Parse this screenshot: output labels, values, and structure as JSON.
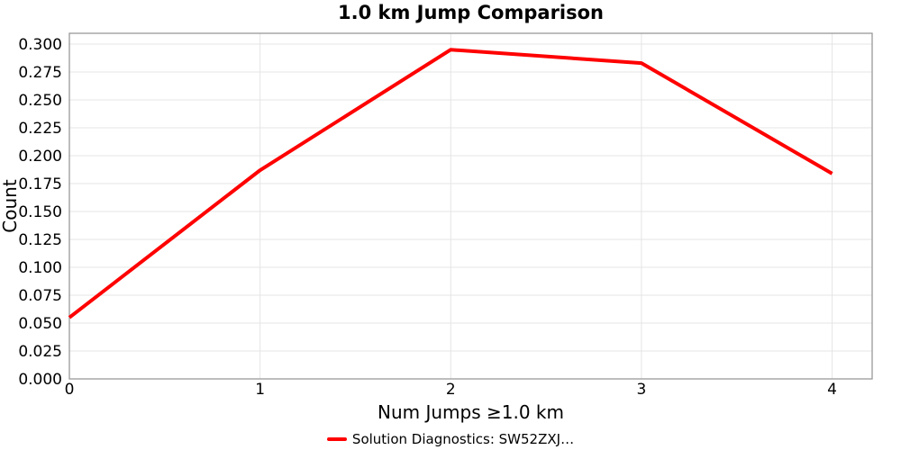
{
  "chart_data": {
    "type": "line",
    "title": "1.0 km Jump Comparison",
    "xlabel": "Num Jumps ≥1.0 km",
    "ylabel": "Count",
    "x": [
      0,
      1,
      2,
      3,
      4
    ],
    "series": [
      {
        "name": "Solution Diagnostics: SW52ZXJ…",
        "color": "#ff0000",
        "values": [
          0.055,
          0.187,
          0.295,
          0.283,
          0.184
        ]
      }
    ],
    "x_tick_labels": [
      "0",
      "1",
      "2",
      "3",
      "4"
    ],
    "x_tick_values": [
      0,
      1,
      2,
      3,
      4
    ],
    "y_tick_labels": [
      "0.000",
      "0.025",
      "0.050",
      "0.075",
      "0.100",
      "0.125",
      "0.150",
      "0.175",
      "0.200",
      "0.225",
      "0.250",
      "0.275",
      "0.300"
    ],
    "y_tick_values": [
      0,
      0.025,
      0.05,
      0.075,
      0.1,
      0.125,
      0.15,
      0.175,
      0.2,
      0.225,
      0.25,
      0.275,
      0.3
    ],
    "xlim": [
      0,
      4.21
    ],
    "ylim": [
      0,
      0.3097
    ],
    "grid": true,
    "legend_position": "bottom-center",
    "colors": {
      "line": "#ff0000",
      "grid": "#e5e5e5",
      "axis_border": "#999999",
      "text": "#000000",
      "background": "#ffffff"
    }
  }
}
